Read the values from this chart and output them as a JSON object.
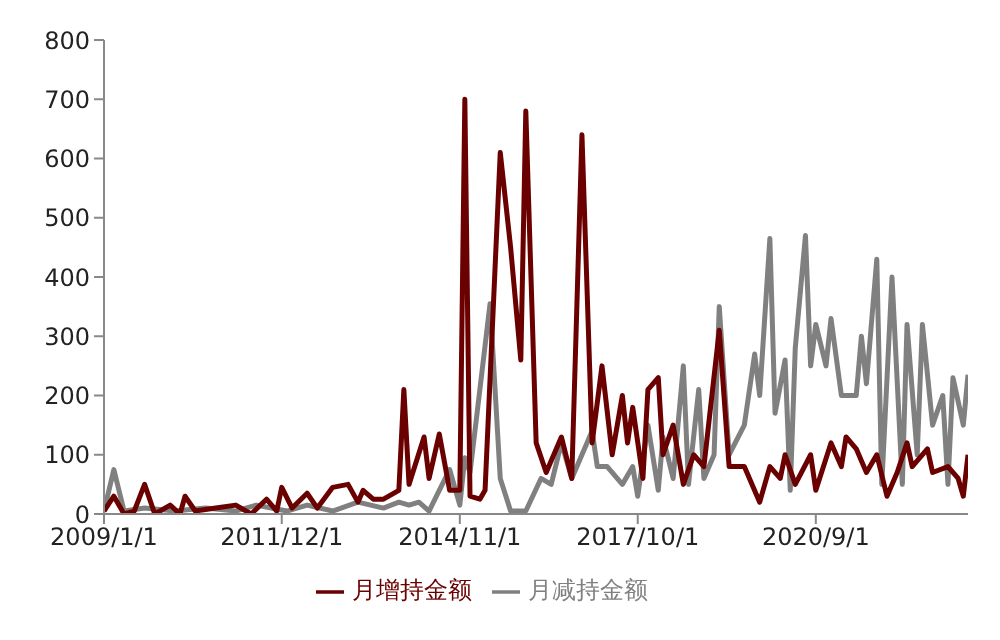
{
  "chart_data": {
    "type": "line",
    "xlim": [
      "2009-01",
      "2023-03"
    ],
    "ylim": [
      0,
      800
    ],
    "yticks": [
      0,
      100,
      200,
      300,
      400,
      500,
      600,
      700,
      800
    ],
    "xticks": [
      {
        "value": "2009-01",
        "label": "2009/1/1"
      },
      {
        "value": "2011-12",
        "label": "2011/12/1"
      },
      {
        "value": "2014-11",
        "label": "2014/11/1"
      },
      {
        "value": "2017-10",
        "label": "2017/10/1"
      },
      {
        "value": "2020-09",
        "label": "2020/9/1"
      }
    ],
    "grid": false,
    "legend": "bottom",
    "marker": "none",
    "line_style": "solid",
    "series": [
      {
        "name": "月增持金额",
        "color": "#6b0000",
        "x": [
          "2009-01",
          "2009-03",
          "2009-05",
          "2009-07",
          "2009-09",
          "2009-11",
          "2010-02",
          "2010-04",
          "2010-05",
          "2010-07",
          "2010-11",
          "2011-03",
          "2011-06",
          "2011-09",
          "2011-11",
          "2011-12",
          "2012-02",
          "2012-05",
          "2012-07",
          "2012-10",
          "2013-01",
          "2013-03",
          "2013-04",
          "2013-06",
          "2013-08",
          "2013-11",
          "2013-12",
          "2014-01",
          "2014-04",
          "2014-05",
          "2014-07",
          "2014-09",
          "2014-11",
          "2014-12",
          "2015-01",
          "2015-03",
          "2015-04",
          "2015-07",
          "2015-09",
          "2015-11",
          "2015-12",
          "2016-02",
          "2016-04",
          "2016-07",
          "2016-09",
          "2016-11",
          "2017-01",
          "2017-03",
          "2017-05",
          "2017-07",
          "2017-08",
          "2017-09",
          "2017-11",
          "2017-12",
          "2018-02",
          "2018-03",
          "2018-05",
          "2018-07",
          "2018-09",
          "2018-11",
          "2019-02",
          "2019-04",
          "2019-07",
          "2019-10",
          "2019-12",
          "2020-02",
          "2020-03",
          "2020-05",
          "2020-08",
          "2020-09",
          "2020-12",
          "2021-02",
          "2021-03",
          "2021-05",
          "2021-07",
          "2021-09",
          "2021-11",
          "2022-01",
          "2022-03",
          "2022-04",
          "2022-07",
          "2022-08",
          "2022-11",
          "2023-01",
          "2023-02",
          "2023-03"
        ],
        "values": [
          5,
          30,
          0,
          5,
          50,
          0,
          15,
          0,
          30,
          5,
          10,
          15,
          0,
          25,
          5,
          45,
          10,
          35,
          10,
          45,
          50,
          20,
          40,
          25,
          25,
          40,
          210,
          50,
          130,
          60,
          135,
          40,
          40,
          700,
          30,
          25,
          40,
          610,
          450,
          260,
          680,
          120,
          70,
          130,
          60,
          640,
          120,
          250,
          100,
          200,
          120,
          180,
          60,
          210,
          230,
          100,
          150,
          50,
          100,
          80,
          310,
          80,
          80,
          20,
          80,
          60,
          100,
          50,
          100,
          40,
          120,
          80,
          130,
          110,
          70,
          100,
          30,
          70,
          120,
          80,
          110,
          70,
          80,
          60,
          30,
          100
        ]
      },
      {
        "name": "月减持金额",
        "color": "#808080",
        "x": [
          "2009-01",
          "2009-03",
          "2009-05",
          "2009-09",
          "2010-03",
          "2010-09",
          "2011-03",
          "2011-07",
          "2012-01",
          "2012-05",
          "2012-10",
          "2013-03",
          "2013-08",
          "2013-11",
          "2014-01",
          "2014-03",
          "2014-05",
          "2014-07",
          "2014-09",
          "2014-11",
          "2014-12",
          "2015-01",
          "2015-05",
          "2015-07",
          "2015-09",
          "2015-12",
          "2016-03",
          "2016-05",
          "2016-07",
          "2016-09",
          "2016-11",
          "2017-01",
          "2017-02",
          "2017-04",
          "2017-07",
          "2017-09",
          "2017-10",
          "2017-12",
          "2018-02",
          "2018-03",
          "2018-05",
          "2018-07",
          "2018-08",
          "2018-10",
          "2018-11",
          "2019-01",
          "2019-02",
          "2019-04",
          "2019-07",
          "2019-09",
          "2019-10",
          "2019-12",
          "2020-01",
          "2020-03",
          "2020-04",
          "2020-05",
          "2020-07",
          "2020-08",
          "2020-09",
          "2020-11",
          "2020-12",
          "2021-02",
          "2021-05",
          "2021-06",
          "2021-07",
          "2021-09",
          "2021-10",
          "2021-12",
          "2022-02",
          "2022-03",
          "2022-05",
          "2022-06",
          "2022-08",
          "2022-10",
          "2022-11",
          "2022-12",
          "2023-02",
          "2023-03"
        ],
        "values": [
          5,
          75,
          5,
          10,
          5,
          10,
          5,
          15,
          5,
          15,
          5,
          20,
          10,
          20,
          15,
          20,
          5,
          40,
          75,
          15,
          95,
          70,
          355,
          60,
          5,
          5,
          60,
          50,
          120,
          60,
          100,
          140,
          80,
          80,
          50,
          80,
          30,
          150,
          40,
          130,
          60,
          250,
          50,
          210,
          60,
          100,
          350,
          100,
          150,
          270,
          200,
          465,
          170,
          260,
          40,
          280,
          470,
          250,
          320,
          250,
          330,
          200,
          200,
          300,
          220,
          430,
          50,
          400,
          50,
          320,
          100,
          320,
          150,
          200,
          50,
          230,
          150,
          235
        ]
      }
    ]
  }
}
